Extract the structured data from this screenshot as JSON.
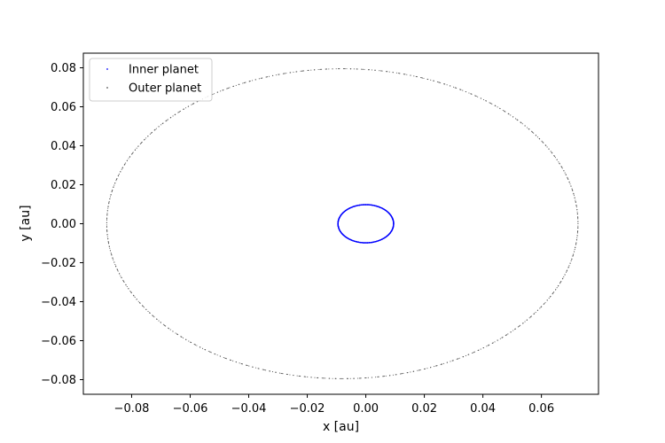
{
  "chart_data": {
    "type": "scatter",
    "title": "",
    "xlabel": "x [au]",
    "ylabel": "y [au]",
    "xlim": [
      -0.0965,
      0.0795
    ],
    "ylim": [
      -0.0875,
      0.0875
    ],
    "xticks": [
      -0.08,
      -0.06,
      -0.04,
      -0.02,
      0.0,
      0.02,
      0.04,
      0.06
    ],
    "yticks": [
      -0.08,
      -0.06,
      -0.04,
      -0.02,
      0.0,
      0.02,
      0.04,
      0.06,
      0.08
    ],
    "xtick_labels": [
      "−0.08",
      "−0.06",
      "−0.04",
      "−0.02",
      "0.00",
      "0.02",
      "0.04",
      "0.06"
    ],
    "ytick_labels": [
      "−0.08",
      "−0.06",
      "−0.04",
      "−0.02",
      "0.00",
      "0.02",
      "0.04",
      "0.06",
      "0.08"
    ],
    "grid": false,
    "legend_position": "top-left",
    "series": [
      {
        "name": "Inner planet",
        "color": "#0000ff",
        "orbit": {
          "x_min": -0.0095,
          "x_max": 0.0095,
          "y_min": -0.0098,
          "y_max": 0.0098
        },
        "n_points": 420
      },
      {
        "name": "Outer planet",
        "color": "#555555",
        "orbit": {
          "x_min": -0.0885,
          "x_max": 0.0725,
          "y_min": -0.0795,
          "y_max": 0.0795
        },
        "n_points": 900
      }
    ]
  }
}
